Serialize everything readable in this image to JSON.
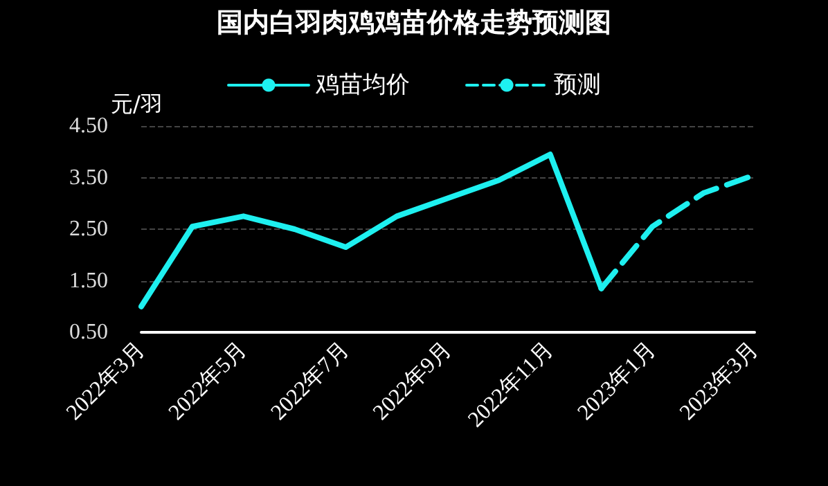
{
  "chart_data": {
    "type": "line",
    "title": "国内白羽肉鸡鸡苗价格走势预测图",
    "ylabel": "元/羽",
    "categories": [
      "2022年3月",
      null,
      "2022年5月",
      null,
      "2022年7月",
      null,
      "2022年9月",
      null,
      "2022年11月",
      null,
      "2023年1月",
      null,
      "2023年3月"
    ],
    "series": [
      {
        "name": "鸡苗均价",
        "color": "#1ef0f0",
        "line_style": "solid",
        "values": [
          1.0,
          2.55,
          2.75,
          2.5,
          2.15,
          2.75,
          3.1,
          3.45,
          3.95,
          1.35,
          null,
          null,
          null
        ]
      },
      {
        "name": "预测",
        "color": "#1ef0f0",
        "line_style": "dashed",
        "values": [
          null,
          null,
          null,
          null,
          null,
          null,
          null,
          null,
          null,
          1.35,
          2.55,
          3.2,
          3.55
        ]
      }
    ],
    "ylim": [
      0.5,
      4.5
    ],
    "yticks": [
      {
        "value": 0.5,
        "label": "0.50"
      },
      {
        "value": 1.5,
        "label": "1.50"
      },
      {
        "value": 2.5,
        "label": "2.50"
      },
      {
        "value": 3.5,
        "label": "3.50"
      },
      {
        "value": 4.5,
        "label": "4.50"
      }
    ],
    "grid": "y",
    "legend": "top",
    "marker": "none"
  }
}
